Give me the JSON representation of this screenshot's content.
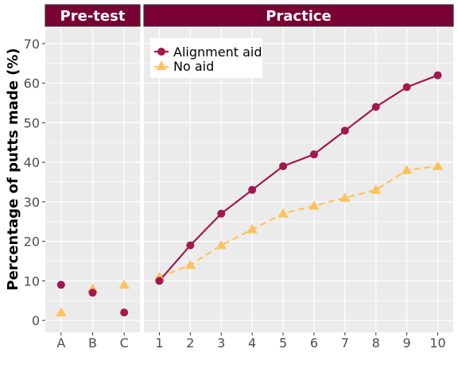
{
  "chart_data": {
    "type": "line",
    "ylabel": "Percentage of putts made (%)",
    "ylim": [
      -3,
      74
    ],
    "yticks": [
      0,
      10,
      20,
      30,
      40,
      50,
      60,
      70
    ],
    "grid": true,
    "legend_position": "top-left of Practice panel",
    "colors": {
      "alignment": "#A3184F",
      "noaid": "#FFC15E",
      "strip": "#7A0034",
      "panel_bg": "#EBEBEB",
      "grid": "#FFFFFF"
    },
    "facets": [
      {
        "label": "Pre-test",
        "categories": [
          "A",
          "B",
          "C"
        ],
        "lines": false,
        "series": [
          {
            "name": "Alignment aid",
            "values": [
              9,
              7,
              2
            ]
          },
          {
            "name": "No aid",
            "values": [
              2,
              8,
              9
            ]
          }
        ]
      },
      {
        "label": "Practice",
        "categories": [
          "1",
          "2",
          "3",
          "4",
          "5",
          "6",
          "7",
          "8",
          "9",
          "10"
        ],
        "lines": true,
        "series": [
          {
            "name": "Alignment aid",
            "values": [
              10,
              19,
              27,
              33,
              39,
              42,
              48,
              54,
              59,
              62
            ]
          },
          {
            "name": "No aid",
            "values": [
              11,
              14,
              19,
              23,
              27,
              29,
              31,
              33,
              38,
              39
            ]
          }
        ]
      }
    ],
    "legend": [
      "Alignment aid",
      "No aid"
    ]
  }
}
